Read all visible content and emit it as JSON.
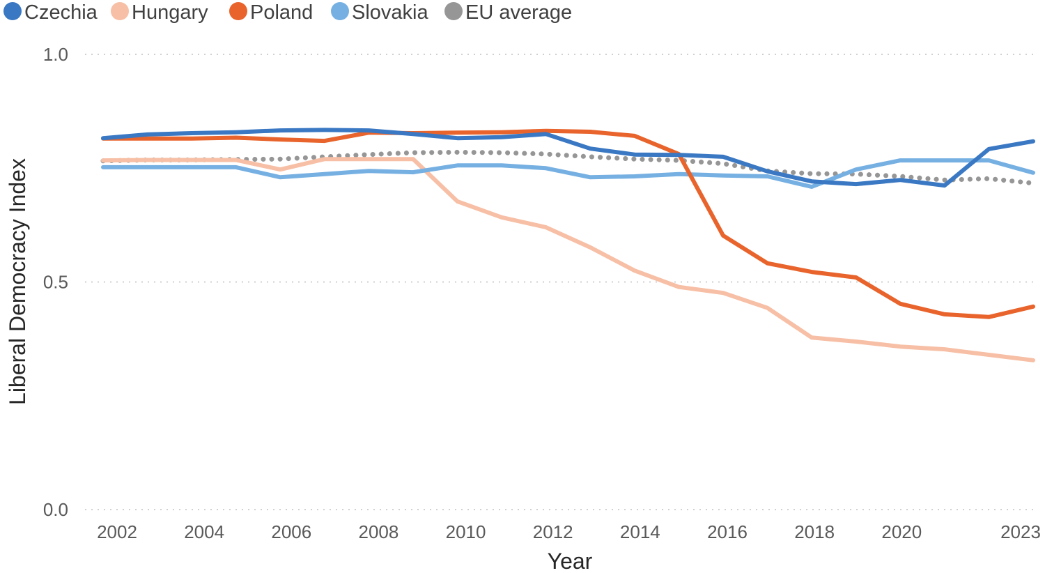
{
  "chart_data": {
    "type": "line",
    "title": "",
    "xlabel": "Year",
    "ylabel": "Liberal Democracy Index",
    "ylim": [
      0,
      1
    ],
    "yticks": [
      "0.0",
      "0.5",
      "1.0"
    ],
    "ytick_values": [
      0,
      0.5,
      1
    ],
    "xticks": [
      "2002",
      "2004",
      "2006",
      "2008",
      "2010",
      "2012",
      "2014",
      "2016",
      "2018",
      "2020",
      "2023"
    ],
    "xtick_values": [
      2002,
      2004,
      2006,
      2008,
      2010,
      2012,
      2014,
      2016,
      2018,
      2020,
      2023
    ],
    "grid": "horizontal dotted",
    "legend_position": "top-left",
    "x": [
      2002,
      2003,
      2004,
      2005,
      2006,
      2007,
      2008,
      2009,
      2010,
      2011,
      2012,
      2013,
      2014,
      2015,
      2016,
      2017,
      2018,
      2019,
      2020,
      2021,
      2022,
      2023
    ],
    "series": [
      {
        "name": "Czechia",
        "color": "#3a78c3",
        "style": "solid",
        "values": [
          0.816,
          0.824,
          0.827,
          0.829,
          0.833,
          0.834,
          0.833,
          0.825,
          0.816,
          0.818,
          0.825,
          0.793,
          0.78,
          0.779,
          0.775,
          0.743,
          0.721,
          0.715,
          0.724,
          0.712,
          0.792,
          0.809
        ]
      },
      {
        "name": "Hungary",
        "color": "#f7bfa5",
        "style": "solid",
        "values": [
          0.767,
          0.768,
          0.768,
          0.768,
          0.747,
          0.77,
          0.77,
          0.77,
          0.677,
          0.642,
          0.62,
          0.576,
          0.525,
          0.489,
          0.476,
          0.443,
          0.378,
          0.369,
          0.358,
          0.352,
          0.34,
          0.328
        ]
      },
      {
        "name": "Poland",
        "color": "#e8642c",
        "style": "solid",
        "values": [
          0.815,
          0.815,
          0.815,
          0.817,
          0.813,
          0.81,
          0.828,
          0.827,
          0.828,
          0.829,
          0.832,
          0.83,
          0.821,
          0.781,
          0.602,
          0.541,
          0.522,
          0.51,
          0.452,
          0.429,
          0.423,
          0.446
        ]
      },
      {
        "name": "Slovakia",
        "color": "#76b0e2",
        "style": "solid",
        "values": [
          0.752,
          0.752,
          0.752,
          0.752,
          0.73,
          0.737,
          0.744,
          0.741,
          0.756,
          0.756,
          0.75,
          0.73,
          0.732,
          0.737,
          0.734,
          0.732,
          0.709,
          0.747,
          0.767,
          0.767,
          0.767,
          0.74
        ]
      },
      {
        "name": "EU average",
        "color": "#969696",
        "style": "dotted",
        "values": [
          0.766,
          0.768,
          0.768,
          0.769,
          0.77,
          0.775,
          0.78,
          0.784,
          0.785,
          0.784,
          0.781,
          0.775,
          0.77,
          0.767,
          0.76,
          0.744,
          0.738,
          0.737,
          0.732,
          0.724,
          0.727,
          0.717
        ]
      }
    ]
  }
}
